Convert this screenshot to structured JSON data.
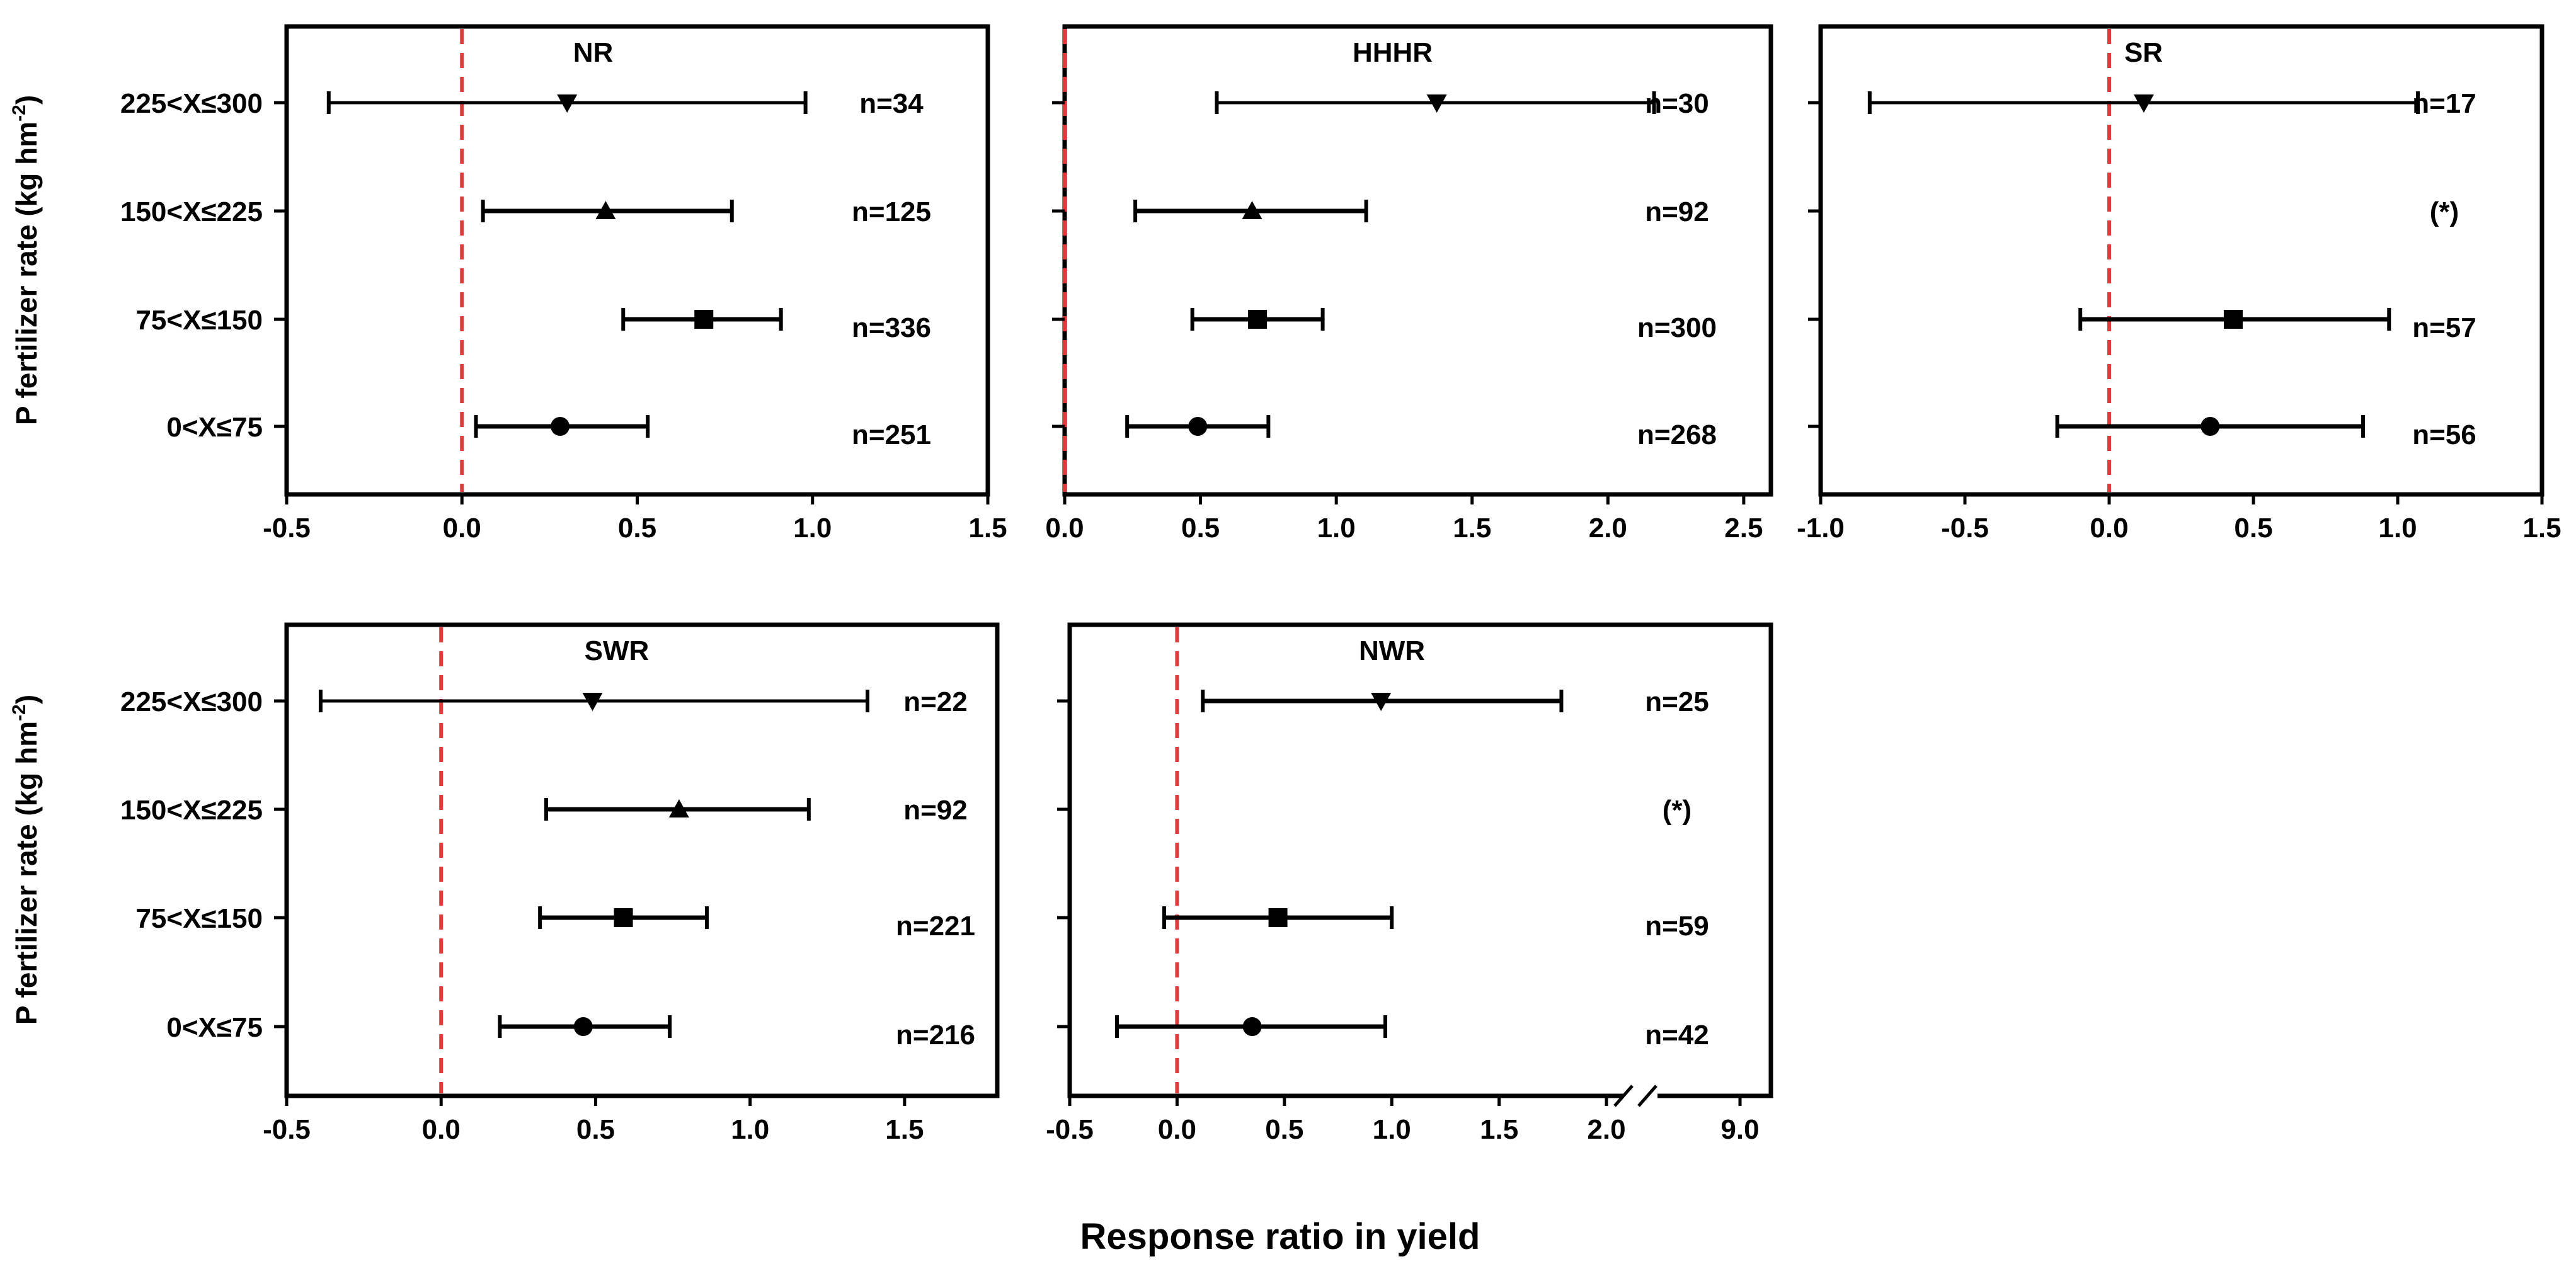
{
  "chart_data": {
    "type": "forest",
    "xlabel": "Response ratio in yield",
    "ylabel": "P fertilizer rate (kg hm",
    "ylabel_sup": "-2",
    "ylabel_close": ")",
    "categories": [
      "225<X≤300",
      "150<X≤225",
      "75<X≤150",
      "0<X≤75"
    ],
    "marker_by_category": [
      "triangle-down",
      "triangle-up",
      "square",
      "circle"
    ],
    "reference_line": 0,
    "reference_color": "#e03b3b",
    "panels": [
      {
        "title": "NR",
        "xlim": [
          -0.5,
          1.5
        ],
        "xticks": [
          -0.5,
          0.0,
          0.5,
          1.0,
          1.5
        ],
        "xtick_labels": [
          "-0.5",
          "0.0",
          "0.5",
          "1.0",
          "1.5"
        ],
        "points": [
          {
            "est": 0.3,
            "low": -0.38,
            "high": 0.98,
            "n": "n=34"
          },
          {
            "est": 0.41,
            "low": 0.06,
            "high": 0.77,
            "n": "n=125"
          },
          {
            "est": 0.69,
            "low": 0.46,
            "high": 0.91,
            "n": "n=336"
          },
          {
            "est": 0.28,
            "low": 0.04,
            "high": 0.53,
            "n": "n=251"
          }
        ]
      },
      {
        "title": "HHHR",
        "xlim": [
          0.0,
          2.6
        ],
        "xticks": [
          0.0,
          0.5,
          1.0,
          1.5,
          2.0,
          2.5
        ],
        "xtick_labels": [
          "0.0",
          "0.5",
          "1.0",
          "1.5",
          "2.0",
          "2.5"
        ],
        "points": [
          {
            "est": 1.37,
            "low": 0.56,
            "high": 2.17,
            "n": "n=30"
          },
          {
            "est": 0.69,
            "low": 0.26,
            "high": 1.11,
            "n": "n=92"
          },
          {
            "est": 0.71,
            "low": 0.47,
            "high": 0.95,
            "n": "n=300"
          },
          {
            "est": 0.49,
            "low": 0.23,
            "high": 0.75,
            "n": "n=268"
          }
        ]
      },
      {
        "title": "SR",
        "xlim": [
          -1.0,
          1.5
        ],
        "xticks": [
          -1.0,
          -0.5,
          0.0,
          0.5,
          1.0,
          1.5
        ],
        "xtick_labels": [
          "-1.0",
          "-0.5",
          "0.0",
          "0.5",
          "1.0",
          "1.5"
        ],
        "points": [
          {
            "est": 0.12,
            "low": -0.83,
            "high": 1.07,
            "n": "n=17"
          },
          {
            "est": null,
            "low": null,
            "high": null,
            "n": "(*)"
          },
          {
            "est": 0.43,
            "low": -0.1,
            "high": 0.97,
            "n": "n=57"
          },
          {
            "est": 0.35,
            "low": -0.18,
            "high": 0.88,
            "n": "n=56"
          }
        ]
      },
      {
        "title": "SWR",
        "xlim": [
          -0.5,
          1.8
        ],
        "xticks": [
          -0.5,
          0.0,
          0.5,
          1.0,
          1.5
        ],
        "xtick_labels": [
          "-0.5",
          "0.0",
          "0.5",
          "1.0",
          "1.5"
        ],
        "points": [
          {
            "est": 0.49,
            "low": -0.39,
            "high": 1.38,
            "n": "n=22"
          },
          {
            "est": 0.77,
            "low": 0.34,
            "high": 1.19,
            "n": "n=92"
          },
          {
            "est": 0.59,
            "low": 0.32,
            "high": 0.86,
            "n": "n=221"
          },
          {
            "est": 0.46,
            "low": 0.19,
            "high": 0.74,
            "n": "n=216"
          }
        ]
      },
      {
        "title": "NWR",
        "xlim": [
          -0.5,
          9.5
        ],
        "axis_break": [
          2.0,
          9.0
        ],
        "xticks": [
          -0.5,
          0.0,
          0.5,
          1.0,
          1.5,
          2.0,
          9.0
        ],
        "xtick_labels": [
          "-0.5",
          "0.0",
          "0.5",
          "1.0",
          "1.5",
          "2.0",
          "9.0"
        ],
        "points": [
          {
            "est": 0.95,
            "low": 0.12,
            "high": 1.79,
            "n": "n=25"
          },
          {
            "est": null,
            "low": null,
            "high": null,
            "n": "(*)"
          },
          {
            "est": 0.47,
            "low": -0.06,
            "high": 1.0,
            "n": "n=59"
          },
          {
            "est": 0.35,
            "low": -0.28,
            "high": 0.97,
            "n": "n=42"
          }
        ]
      }
    ]
  }
}
